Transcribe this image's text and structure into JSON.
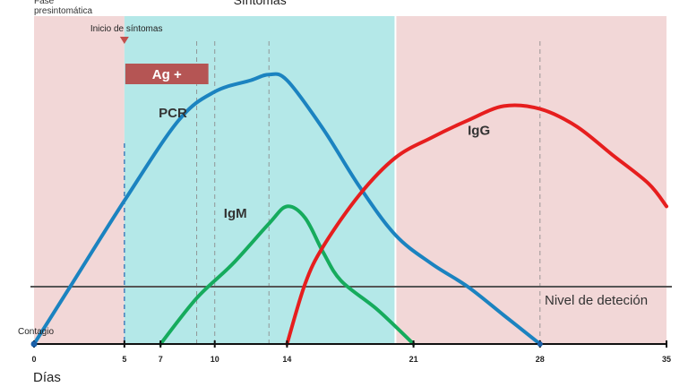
{
  "chart_data": {
    "type": "line",
    "xlabel": "Días",
    "ylabel": "",
    "xlim": [
      0,
      35
    ],
    "ylim": [
      0,
      100
    ],
    "x_ticks": [
      0,
      5,
      7,
      10,
      14,
      21,
      28,
      35
    ],
    "regions": [
      {
        "name": "presymptomatic",
        "label": "Fase\npresintomática",
        "x": [
          0,
          5
        ],
        "color": "#f2d7d7"
      },
      {
        "name": "symptoms",
        "label": "Síntomas",
        "x": [
          5,
          20
        ],
        "color": "#b4e8e8"
      },
      {
        "name": "post",
        "label": "",
        "x": [
          20,
          35
        ],
        "color": "#f2d7d7"
      }
    ],
    "annotations": {
      "onset": {
        "label": "Inicio de síntomas",
        "x": 5
      },
      "contagion": {
        "label": "Contagio",
        "x": 0
      },
      "antigen": {
        "label": "Ag +",
        "x": [
          5,
          9.6
        ],
        "y": 98,
        "color": "#b55554"
      },
      "detection": {
        "label": "Nivel de deteción",
        "y": 20
      }
    },
    "guides": [
      5,
      9,
      10,
      13,
      28
    ],
    "series": [
      {
        "name": "PCR",
        "color": "#1b83c0",
        "label_pos": [
          6.9,
          79
        ],
        "points": [
          [
            0,
            0
          ],
          [
            2,
            20
          ],
          [
            5,
            50
          ],
          [
            8,
            78
          ],
          [
            10,
            88
          ],
          [
            12,
            92
          ],
          [
            13,
            94
          ],
          [
            14,
            92
          ],
          [
            16,
            75
          ],
          [
            18,
            55
          ],
          [
            20,
            38
          ],
          [
            22,
            28
          ],
          [
            24,
            20
          ],
          [
            26,
            10
          ],
          [
            28,
            0
          ]
        ]
      },
      {
        "name": "IgM",
        "color": "#16ab5d",
        "label_pos": [
          10.5,
          44
        ],
        "points": [
          [
            7,
            0
          ],
          [
            9,
            16
          ],
          [
            11,
            28
          ],
          [
            13,
            42
          ],
          [
            14,
            48
          ],
          [
            15,
            44
          ],
          [
            16,
            32
          ],
          [
            17,
            22
          ],
          [
            19,
            12
          ],
          [
            21,
            0
          ]
        ]
      },
      {
        "name": "IgG",
        "color": "#e61e1e",
        "label_pos": [
          24,
          73
        ],
        "points": [
          [
            14,
            0
          ],
          [
            15,
            21
          ],
          [
            16,
            34
          ],
          [
            18,
            52
          ],
          [
            20,
            65
          ],
          [
            22,
            72
          ],
          [
            24,
            78
          ],
          [
            26,
            83
          ],
          [
            28,
            82
          ],
          [
            30,
            76
          ],
          [
            32,
            66
          ],
          [
            34,
            56
          ],
          [
            35,
            48
          ]
        ]
      }
    ]
  }
}
